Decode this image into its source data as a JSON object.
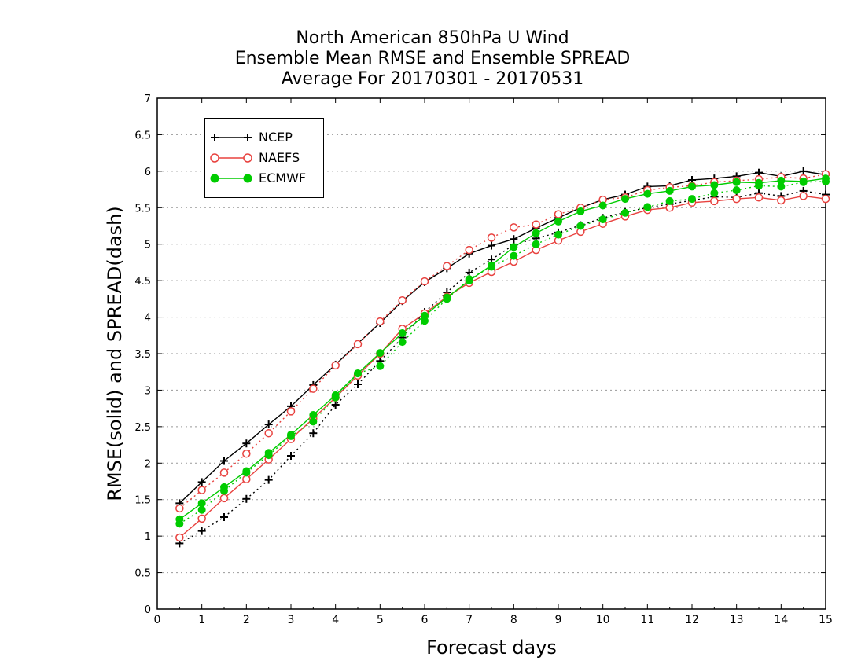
{
  "chart_data": {
    "type": "line",
    "title": [
      "North American 850hPa U Wind",
      "Ensemble Mean RMSE and Ensemble SPREAD",
      "Average For 20170301 - 20170531"
    ],
    "xlabel": "Forecast days",
    "ylabel": "RMSE(solid) and SPREAD(dash)",
    "xlim": [
      0,
      15
    ],
    "ylim": [
      0,
      7
    ],
    "x_ticks": [
      "0",
      "1",
      "2",
      "3",
      "4",
      "5",
      "6",
      "7",
      "8",
      "9",
      "10",
      "11",
      "12",
      "13",
      "14",
      "15"
    ],
    "y_ticks": [
      "0",
      "0.5",
      "1",
      "1.5",
      "2",
      "2.5",
      "3",
      "3.5",
      "4",
      "4.5",
      "5",
      "5.5",
      "6",
      "6.5",
      "7"
    ],
    "grid": "horizontal dotted",
    "legend_position": "top-left",
    "x": [
      0.5,
      1,
      1.5,
      2,
      2.5,
      3,
      3.5,
      4,
      4.5,
      5,
      5.5,
      6,
      6.5,
      7,
      7.5,
      8,
      8.5,
      9,
      9.5,
      10,
      10.5,
      11,
      11.5,
      12,
      12.5,
      13,
      13.5,
      14,
      14.5,
      15
    ],
    "series": [
      {
        "name": "NCEP",
        "color": "#000000",
        "marker": "plus",
        "rmse": [
          1.45,
          1.74,
          2.03,
          2.27,
          2.53,
          2.78,
          3.07,
          3.35,
          3.64,
          3.92,
          4.22,
          4.48,
          4.67,
          4.87,
          4.98,
          5.07,
          5.22,
          5.36,
          5.5,
          5.61,
          5.68,
          5.79,
          5.8,
          5.88,
          5.9,
          5.93,
          5.98,
          5.93,
          6.0,
          5.95
        ],
        "spread": [
          0.9,
          1.07,
          1.26,
          1.51,
          1.77,
          2.1,
          2.41,
          2.8,
          3.08,
          3.4,
          3.72,
          4.07,
          4.34,
          4.61,
          4.79,
          4.99,
          5.08,
          5.16,
          5.26,
          5.36,
          5.44,
          5.5,
          5.55,
          5.6,
          5.65,
          5.64,
          5.7,
          5.66,
          5.73,
          5.68
        ]
      },
      {
        "name": "NAEFS",
        "color": "#e8423f",
        "marker": "circle",
        "rmse": [
          0.98,
          1.24,
          1.52,
          1.78,
          2.05,
          2.33,
          2.61,
          2.9,
          3.2,
          3.5,
          3.84,
          4.05,
          4.28,
          4.47,
          4.62,
          4.76,
          4.92,
          5.05,
          5.17,
          5.28,
          5.38,
          5.47,
          5.5,
          5.57,
          5.59,
          5.62,
          5.64,
          5.6,
          5.66,
          5.62
        ],
        "spread": [
          1.38,
          1.63,
          1.87,
          2.13,
          2.41,
          2.71,
          3.02,
          3.34,
          3.63,
          3.94,
          4.23,
          4.49,
          4.7,
          4.92,
          5.09,
          5.23,
          5.27,
          5.41,
          5.5,
          5.61,
          5.64,
          5.74,
          5.78,
          5.8,
          5.85,
          5.87,
          5.89,
          5.92,
          5.9,
          5.96
        ]
      },
      {
        "name": "ECMWF",
        "color": "#00cc00",
        "marker": "filled-circle",
        "rmse": [
          1.23,
          1.45,
          1.67,
          1.89,
          2.14,
          2.39,
          2.66,
          2.93,
          3.23,
          3.51,
          3.78,
          4.02,
          4.27,
          4.5,
          4.71,
          4.96,
          5.15,
          5.31,
          5.45,
          5.53,
          5.62,
          5.69,
          5.73,
          5.79,
          5.81,
          5.85,
          5.84,
          5.87,
          5.86,
          5.9
        ],
        "spread": [
          1.17,
          1.36,
          1.62,
          1.87,
          2.11,
          2.37,
          2.57,
          2.9,
          3.23,
          3.33,
          3.66,
          3.95,
          4.25,
          4.52,
          4.69,
          4.84,
          5.0,
          5.13,
          5.25,
          5.34,
          5.43,
          5.51,
          5.59,
          5.62,
          5.7,
          5.74,
          5.8,
          5.79,
          5.85,
          5.86
        ]
      }
    ]
  }
}
